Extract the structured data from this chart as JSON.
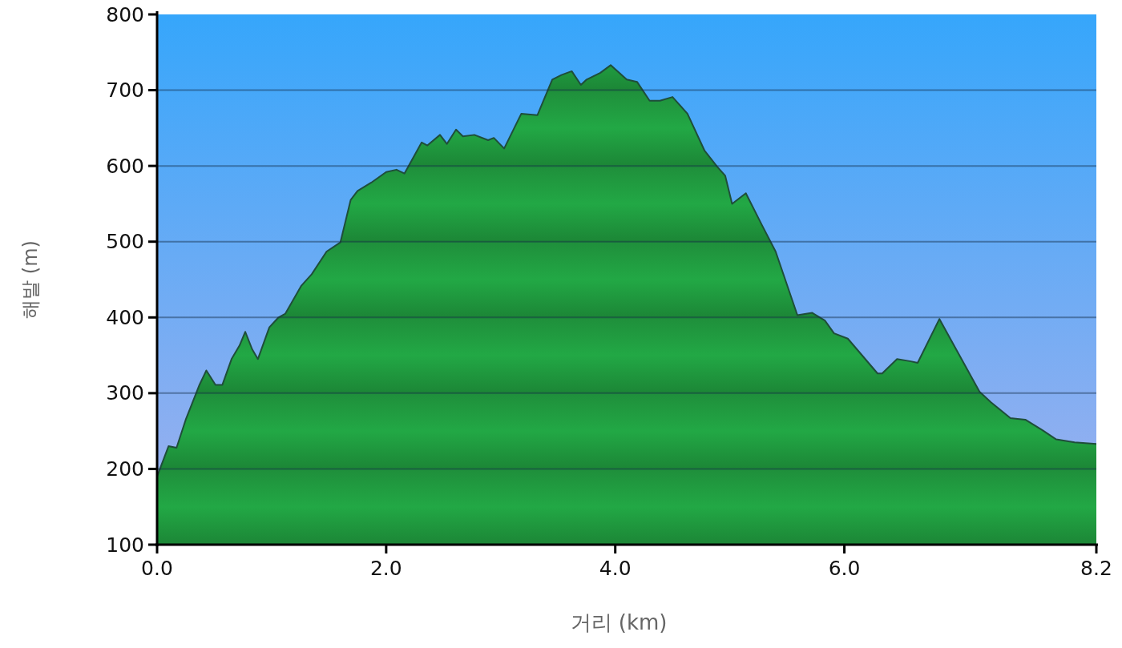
{
  "chart_data": {
    "type": "area",
    "xlabel": "거리 (km)",
    "ylabel": "해발 (m)",
    "x": [
      0,
      0.1,
      0.17,
      0.25,
      0.37,
      0.43,
      0.51,
      0.57,
      0.65,
      0.72,
      0.77,
      0.83,
      0.88,
      0.98,
      1.06,
      1.12,
      1.26,
      1.35,
      1.48,
      1.6,
      1.69,
      1.75,
      1.87,
      2.0,
      2.09,
      2.16,
      2.31,
      2.36,
      2.47,
      2.53,
      2.61,
      2.67,
      2.77,
      2.89,
      2.94,
      3.03,
      3.18,
      3.32,
      3.45,
      3.53,
      3.62,
      3.7,
      3.75,
      3.87,
      3.96,
      4.1,
      4.19,
      4.3,
      4.39,
      4.5,
      4.63,
      4.78,
      4.89,
      4.96,
      5.02,
      5.14,
      5.28,
      5.4,
      5.59,
      5.72,
      5.83,
      5.91,
      6.03,
      6.29,
      6.33,
      6.46,
      6.58,
      6.64,
      6.83,
      6.99,
      7.18,
      7.28,
      7.45,
      7.58,
      7.73,
      7.85,
      8.01,
      8.2
    ],
    "series": [
      {
        "color": "#22a845",
        "values": [
          190,
          230,
          228,
          265,
          311,
          330,
          311,
          311,
          345,
          363,
          381,
          358,
          345,
          387,
          400,
          405,
          442,
          457,
          487,
          499,
          555,
          567,
          578,
          592,
          595,
          590,
          631,
          627,
          641,
          629,
          648,
          639,
          641,
          634,
          637,
          623,
          669,
          667,
          714,
          720,
          725,
          707,
          714,
          723,
          733,
          714,
          711,
          686,
          686,
          691,
          669,
          620,
          599,
          587,
          550,
          564,
          522,
          487,
          403,
          406,
          396,
          379,
          372,
          326,
          326,
          345,
          342,
          340,
          398,
          354,
          302,
          288,
          267,
          265,
          251,
          239,
          235,
          233
        ]
      }
    ],
    "xlim": [
      0,
      8.2
    ],
    "ylim": [
      100,
      800
    ],
    "xticks": [
      {
        "value": 0,
        "label": "0.0"
      },
      {
        "value": 2,
        "label": "2.0"
      },
      {
        "value": 4,
        "label": "4.0"
      },
      {
        "value": 6,
        "label": "6.0"
      },
      {
        "value": 8.2,
        "label": "8.2"
      }
    ],
    "yticks": [
      100,
      200,
      300,
      400,
      500,
      600,
      700,
      800
    ],
    "grid": "y"
  }
}
